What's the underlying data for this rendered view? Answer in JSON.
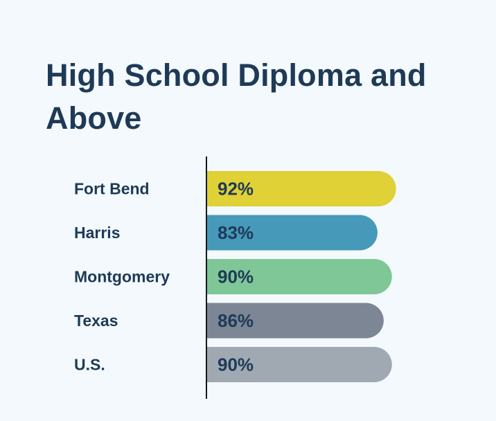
{
  "chart_data": {
    "type": "bar",
    "orientation": "horizontal",
    "title": "High School Diploma and Above",
    "categories": [
      "Fort Bend",
      "Harris",
      "Montgomery",
      "Texas",
      "U.S."
    ],
    "values": [
      92,
      83,
      90,
      86,
      90
    ],
    "value_labels": [
      "92%",
      "83%",
      "90%",
      "86%",
      "90%"
    ],
    "unit": "%",
    "bar_colors": [
      "#dfd136",
      "#4699b8",
      "#7fc796",
      "#7c8694",
      "#a0a9b2"
    ],
    "xlim": [
      0,
      100
    ],
    "grid": false,
    "legend": "none"
  }
}
